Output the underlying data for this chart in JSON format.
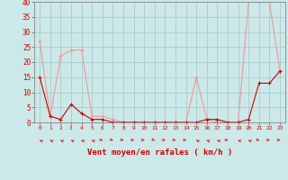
{
  "hours": [
    0,
    1,
    2,
    3,
    4,
    5,
    6,
    7,
    8,
    9,
    10,
    11,
    12,
    13,
    14,
    15,
    16,
    17,
    18,
    19,
    20,
    21,
    22,
    23
  ],
  "wind_avg": [
    15,
    2,
    1,
    6,
    3,
    1,
    1,
    0,
    0,
    0,
    0,
    0,
    0,
    0,
    0,
    0,
    1,
    1,
    0,
    0,
    1,
    13,
    13,
    17
  ],
  "wind_gust": [
    27,
    2,
    22,
    24,
    24,
    2,
    2,
    1,
    0,
    0,
    0,
    0,
    0,
    0,
    0,
    15,
    1,
    0,
    0,
    0,
    40,
    40,
    40,
    17
  ],
  "wind_dir": [
    225,
    225,
    225,
    225,
    225,
    225,
    45,
    45,
    45,
    45,
    45,
    45,
    45,
    45,
    45,
    225,
    225,
    225,
    45,
    225,
    225,
    45,
    45,
    45
  ],
  "ylim": [
    0,
    40
  ],
  "yticks": [
    0,
    5,
    10,
    15,
    20,
    25,
    30,
    35,
    40
  ],
  "xlabel": "Vent moyen/en rafales ( km/h )",
  "bg_color": "#cce8e8",
  "grid_color": "#aacccc",
  "line_avg_color": "#cc0000",
  "line_gust_color": "#ee9999",
  "arrow_color": "#cc0000"
}
